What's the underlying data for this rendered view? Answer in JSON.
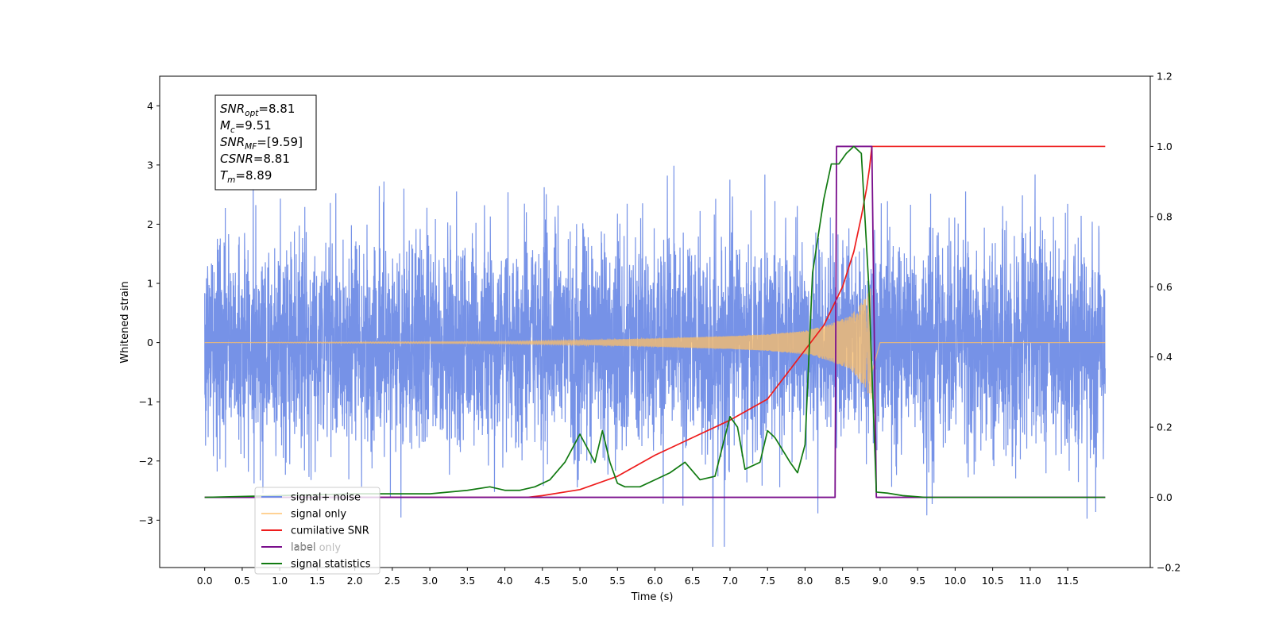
{
  "chart_data": {
    "type": "line",
    "title": "",
    "xlabel": "Time (s)",
    "ylabel": "Whitened strain",
    "y2label": "",
    "xlim": [
      -0.6,
      12.6
    ],
    "ylim": [
      -3.8,
      4.5
    ],
    "y2lim": [
      -0.2,
      1.2
    ],
    "xticks": [
      "0.0",
      "0.5",
      "1.0",
      "1.5",
      "2.0",
      "2.5",
      "3.0",
      "3.5",
      "4.0",
      "4.5",
      "5.0",
      "5.5",
      "6.0",
      "6.5",
      "7.0",
      "7.5",
      "8.0",
      "8.5",
      "9.0",
      "9.5",
      "10.0",
      "10.5",
      "11.0",
      "11.5"
    ],
    "yticks": [
      "4",
      "3",
      "2",
      "1",
      "0",
      "−1",
      "−2",
      "−3"
    ],
    "y2ticks": [
      "1.2",
      "1.0",
      "0.8",
      "0.6",
      "0.4",
      "0.2",
      "0.0",
      "−0.2"
    ],
    "grid": false,
    "legend_position": "bottom-left",
    "stats_box": [
      {
        "sym": "SNR",
        "sub": "opt",
        "val": "=8.81"
      },
      {
        "sym": "M",
        "sub": "c",
        "val": "=9.51"
      },
      {
        "sym": "SNR",
        "sub": "MF",
        "val": "=[9.59]"
      },
      {
        "sym": "CSNR",
        "sub": "",
        "val": "=8.81"
      },
      {
        "sym": "T",
        "sub": "m",
        "val": "=8.89"
      }
    ],
    "series": [
      {
        "name": "signal+ noise",
        "axis": "left",
        "color": "#6f8ce6",
        "x_range": [
          0,
          12
        ],
        "noise_std": 0.9,
        "max": 4.1,
        "min": -3.45
      },
      {
        "name": "signal only",
        "axis": "left",
        "color": "#ffbf66",
        "envelope": {
          "x": [
            0,
            2,
            4,
            5,
            6,
            7,
            7.5,
            8,
            8.3,
            8.6,
            8.8,
            8.89,
            9.0,
            12
          ],
          "amp": [
            0,
            0.01,
            0.02,
            0.04,
            0.07,
            0.11,
            0.14,
            0.2,
            0.3,
            0.45,
            0.75,
            1.0,
            0,
            0
          ]
        }
      },
      {
        "name": "cumilative SNR",
        "axis": "right",
        "color": "#ee1c1c",
        "x": [
          0,
          4.3,
          4.5,
          5.0,
          5.5,
          6.0,
          6.5,
          7.0,
          7.5,
          8.0,
          8.25,
          8.5,
          8.65,
          8.75,
          8.82,
          8.86,
          8.89,
          12
        ],
        "y": [
          0,
          0,
          0.005,
          0.022,
          0.06,
          0.12,
          0.17,
          0.22,
          0.28,
          0.42,
          0.49,
          0.6,
          0.7,
          0.8,
          0.88,
          0.94,
          1.0,
          1.0
        ]
      },
      {
        "name": "label only",
        "axis": "right",
        "color": "#fff7ec",
        "x": [],
        "y": []
      },
      {
        "name": "label",
        "axis": "right",
        "color": "#7a0e8c",
        "x": [
          0,
          8.4,
          8.42,
          8.86,
          8.89,
          8.95,
          12
        ],
        "y": [
          0,
          0,
          1.0,
          1.0,
          1.0,
          0,
          0
        ]
      },
      {
        "name": "signal statistics",
        "axis": "right",
        "color": "#117a11",
        "x": [
          0,
          2.0,
          2.5,
          3.0,
          3.5,
          3.8,
          4.0,
          4.2,
          4.4,
          4.6,
          4.8,
          5.0,
          5.2,
          5.3,
          5.4,
          5.5,
          5.6,
          5.8,
          6.0,
          6.2,
          6.4,
          6.6,
          6.8,
          7.0,
          7.1,
          7.2,
          7.4,
          7.5,
          7.6,
          7.8,
          7.9,
          8.0,
          8.1,
          8.25,
          8.35,
          8.45,
          8.55,
          8.65,
          8.75,
          8.85,
          8.95,
          9.1,
          9.3,
          9.6,
          10,
          11,
          12
        ],
        "y": [
          0,
          0.01,
          0.01,
          0.01,
          0.02,
          0.03,
          0.02,
          0.02,
          0.03,
          0.05,
          0.1,
          0.18,
          0.1,
          0.19,
          0.1,
          0.04,
          0.03,
          0.03,
          0.05,
          0.07,
          0.1,
          0.05,
          0.06,
          0.23,
          0.2,
          0.08,
          0.1,
          0.19,
          0.17,
          0.1,
          0.07,
          0.15,
          0.64,
          0.85,
          0.95,
          0.95,
          0.98,
          1.0,
          0.98,
          0.6,
          0.015,
          0.012,
          0.005,
          0.0,
          0.0,
          0.0,
          0.0
        ]
      }
    ]
  }
}
